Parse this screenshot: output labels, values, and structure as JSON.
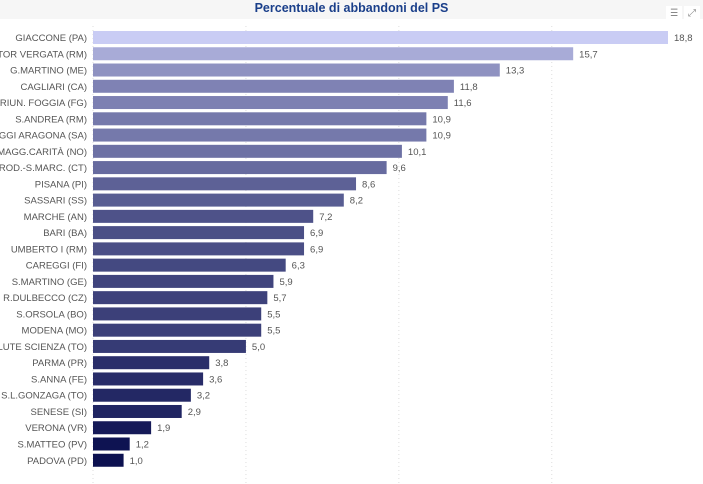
{
  "chart_data": {
    "type": "bar",
    "orientation": "horizontal",
    "title": "Percentuale di abbandoni del PS",
    "categories": [
      "GIACCONE (PA)",
      "TOR VERGATA (RM)",
      "G.MARTINO (ME)",
      "CAGLIARI (CA)",
      "RIUN. FOGGIA (FG)",
      "S.ANDREA (RM)",
      "RUGGI ARAGONA (SA)",
      "MAGG.CARITÀ (NO)",
      "ROD.-S.MARC. (CT)",
      "PISANA (PI)",
      "SASSARI (SS)",
      "MARCHE (AN)",
      "BARI (BA)",
      "UMBERTO I (RM)",
      "CAREGGI (FI)",
      "S.MARTINO (GE)",
      "R.DULBECCO (CZ)",
      "S.ORSOLA (BO)",
      "MODENA (MO)",
      "SALUTE SCIENZA (TO)",
      "PARMA (PR)",
      "S.ANNA (FE)",
      "S.L.GONZAGA (TO)",
      "SENESE (SI)",
      "VERONA (VR)",
      "S.MATTEO (PV)",
      "PADOVA (PD)"
    ],
    "values": [
      18.8,
      15.7,
      13.3,
      11.8,
      11.6,
      10.9,
      10.9,
      10.1,
      9.6,
      8.6,
      8.2,
      7.2,
      6.9,
      6.9,
      6.3,
      5.9,
      5.7,
      5.5,
      5.5,
      5.0,
      3.8,
      3.6,
      3.2,
      2.9,
      1.9,
      1.2,
      1.0
    ],
    "data_labels": [
      "18,8",
      "15,7",
      "13,3",
      "11,8",
      "11,6",
      "10,9",
      "10,9",
      "10,1",
      "9,6",
      "8,6",
      "8,2",
      "7,2",
      "6,9",
      "6,9",
      "6,3",
      "5,9",
      "5,7",
      "5,5",
      "5,5",
      "5,0",
      "3,8",
      "3,6",
      "3,2",
      "2,9",
      "1,9",
      "1,2",
      "1,0"
    ],
    "xlim": [
      0,
      18.8
    ],
    "grid": true,
    "gridlines_at": [
      0,
      5,
      10,
      15
    ],
    "color_scale": [
      "#c9ccf4",
      "#0c1150"
    ]
  },
  "toolbar": {
    "icons": [
      "filter-icon",
      "focus-mode-icon"
    ]
  }
}
